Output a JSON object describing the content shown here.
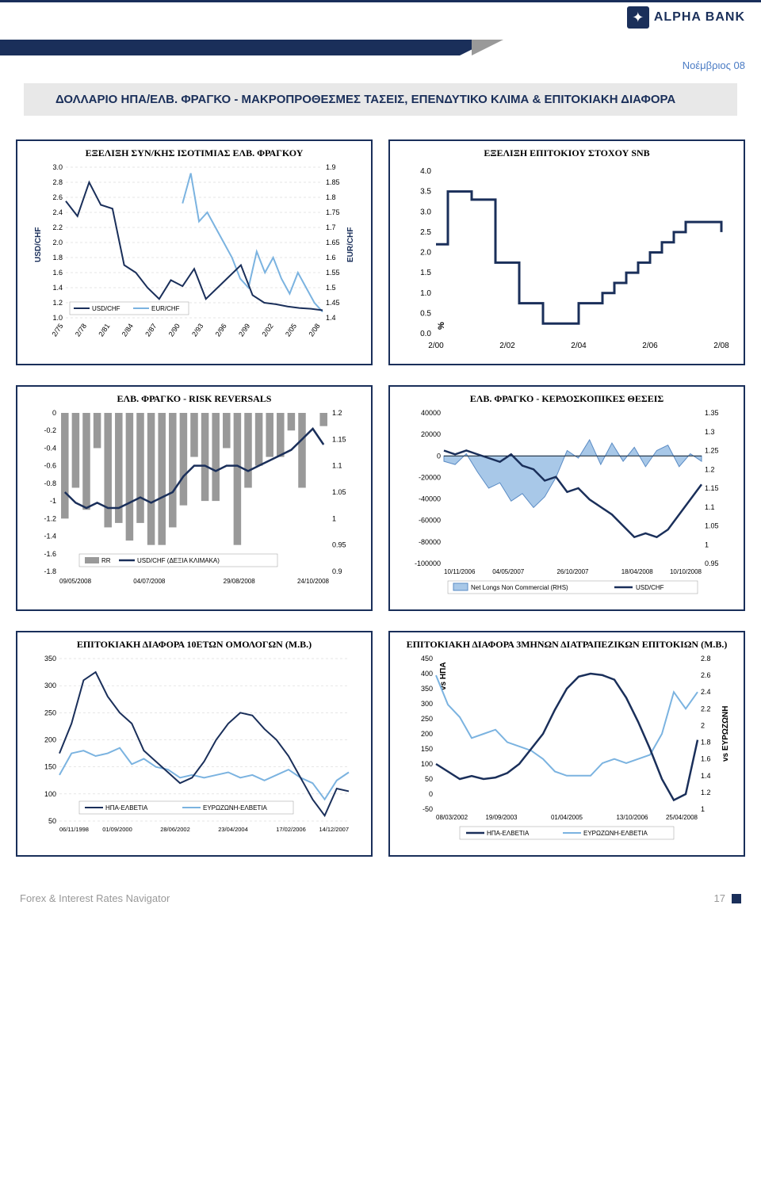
{
  "header": {
    "brand": "ALPHA BANK",
    "date": "Νοέμβριος 08"
  },
  "page_title": "ΔΟΛΛΑΡΙΟ ΗΠΑ/ΕΛΒ. ΦΡΑΓΚΟ - ΜΑΚΡΟΠΡΟΘΕΣΜΕΣ ΤΑΣΕΙΣ, ΕΠΕΝΔΥΤΙΚΟ ΚΛΙΜΑ & ΕΠΙΤΟΚΙΑΚΗ ΔΙΑΦΟΡΑ",
  "charts": {
    "c1": {
      "title": "ΕΞΕΛΙΞΗ ΣΥΝ/ΚΗΣ ΙΣΟΤΙΜΙΑΣ ΕΛΒ. ΦΡΑΓΚΟΥ",
      "type": "line-dual",
      "colors": {
        "usd": "#1a2f5a",
        "eur": "#7bb3e0",
        "grid": "#cccccc",
        "bg": "#ffffff"
      },
      "left_axis": {
        "label": "USD/CHF",
        "min": 1.0,
        "max": 3.0,
        "ticks": [
          1.0,
          1.2,
          1.4,
          1.6,
          1.8,
          2.0,
          2.2,
          2.4,
          2.6,
          2.8,
          3.0
        ]
      },
      "right_axis": {
        "label": "EUR/CHF",
        "min": 1.4,
        "max": 1.9,
        "ticks": [
          1.4,
          1.45,
          1.5,
          1.55,
          1.6,
          1.65,
          1.7,
          1.75,
          1.8,
          1.85,
          1.9
        ]
      },
      "x_labels": [
        "2/75",
        "2/78",
        "2/81",
        "2/84",
        "2/87",
        "2/90",
        "2/93",
        "2/96",
        "2/99",
        "2/02",
        "2/05",
        "2/08"
      ],
      "legend": [
        "USD/CHF",
        "EUR/CHF"
      ],
      "usd_data": [
        2.55,
        2.35,
        2.8,
        2.5,
        2.45,
        1.7,
        1.6,
        1.4,
        1.25,
        1.5,
        1.42,
        1.65,
        1.25,
        1.4,
        1.55,
        1.7,
        1.3,
        1.2,
        1.18,
        1.15,
        1.13,
        1.12,
        1.1
      ],
      "eur_data_x_start": 5,
      "eur_data": [
        1.78,
        1.88,
        1.72,
        1.75,
        1.7,
        1.65,
        1.6,
        1.53,
        1.5,
        1.62,
        1.55,
        1.6,
        1.53,
        1.48,
        1.55,
        1.5,
        1.45,
        1.42
      ]
    },
    "c2": {
      "title": "ΕΞΕΛΙΞΗ ΕΠΙΤΟΚΙΟΥ ΣΤΟΧΟΥ SNB",
      "type": "step-line",
      "colors": {
        "line": "#1a2f5a",
        "bg": "#ffffff"
      },
      "y_axis": {
        "label": "%",
        "min": 0,
        "max": 4.0,
        "ticks": [
          0.0,
          0.5,
          1.0,
          1.5,
          2.0,
          2.5,
          3.0,
          3.5,
          4.0
        ]
      },
      "x_labels": [
        "2/00",
        "2/02",
        "2/04",
        "2/06",
        "2/08"
      ],
      "data": [
        2.2,
        3.5,
        3.5,
        3.3,
        3.3,
        1.75,
        1.75,
        0.75,
        0.75,
        0.25,
        0.25,
        0.25,
        0.75,
        0.75,
        1.0,
        1.25,
        1.5,
        1.75,
        2.0,
        2.25,
        2.5,
        2.75,
        2.75,
        2.75,
        2.5
      ]
    },
    "c3": {
      "title": "ΕΛΒ. ΦΡΑΓΚΟ - RISK REVERSALS",
      "type": "bar-line",
      "colors": {
        "bar": "#999999",
        "line": "#1a2f5a",
        "bg": "#ffffff"
      },
      "left_axis": {
        "min": -1.8,
        "max": 0,
        "ticks": [
          0,
          -0.2,
          -0.4,
          -0.6,
          -0.8,
          -1,
          -1.2,
          -1.4,
          -1.6,
          -1.8
        ]
      },
      "right_axis": {
        "min": 0.9,
        "max": 1.2,
        "ticks": [
          0.9,
          0.95,
          1,
          1.05,
          1.1,
          1.15,
          1.2
        ]
      },
      "x_labels": [
        "09/05/2008",
        "04/07/2008",
        "29/08/2008",
        "24/10/2008"
      ],
      "legend": [
        "RR",
        "USD/CHF (ΔΕΞΙΑ ΚΛΙΜΑΚΑ)"
      ],
      "bar_data": [
        -1.2,
        -0.85,
        -1.1,
        -0.4,
        -1.3,
        -1.25,
        -1.45,
        -1.25,
        -1.5,
        -1.5,
        -1.3,
        -1.05,
        -0.5,
        -1.0,
        -1.0,
        -0.4,
        -1.5,
        -0.85,
        -0.6,
        -0.5,
        -0.5,
        -0.2,
        -0.85,
        0,
        -0.15
      ],
      "line_data": [
        1.05,
        1.03,
        1.02,
        1.03,
        1.02,
        1.02,
        1.03,
        1.04,
        1.03,
        1.04,
        1.05,
        1.08,
        1.1,
        1.1,
        1.09,
        1.1,
        1.1,
        1.09,
        1.1,
        1.11,
        1.12,
        1.13,
        1.15,
        1.17,
        1.14
      ]
    },
    "c4": {
      "title": "ΕΛΒ. ΦΡΑΓΚΟ - ΚΕΡΔΟΣΚΟΠΙΚΕΣ ΘΕΣΕΙΣ",
      "type": "area-line",
      "colors": {
        "area": "#a8c8e8",
        "area_stroke": "#5a8bc4",
        "line": "#1a2f5a",
        "bg": "#ffffff"
      },
      "left_axis": {
        "min": -100000,
        "max": 40000,
        "ticks": [
          -100000,
          -80000,
          -60000,
          -40000,
          -20000,
          0,
          20000,
          40000
        ]
      },
      "right_axis": {
        "min": 0.95,
        "max": 1.35,
        "ticks": [
          0.95,
          1,
          1.05,
          1.1,
          1.15,
          1.2,
          1.25,
          1.3,
          1.35
        ]
      },
      "x_labels": [
        "10/11/2006",
        "04/05/2007",
        "26/10/2007",
        "18/04/2008",
        "10/10/2008"
      ],
      "legend": [
        "Net Longs Non Commercial (RHS)",
        "USD/CHF"
      ],
      "area_data": [
        -5000,
        -8000,
        2000,
        -15000,
        -30000,
        -25000,
        -42000,
        -35000,
        -48000,
        -38000,
        -20000,
        5000,
        -2000,
        15000,
        -8000,
        12000,
        -5000,
        8000,
        -10000,
        5000,
        10000,
        -10000,
        2000,
        -5000
      ],
      "line_data": [
        1.25,
        1.24,
        1.25,
        1.24,
        1.23,
        1.22,
        1.24,
        1.21,
        1.2,
        1.17,
        1.18,
        1.14,
        1.15,
        1.12,
        1.1,
        1.08,
        1.05,
        1.02,
        1.03,
        1.02,
        1.04,
        1.08,
        1.12,
        1.16
      ]
    },
    "c5": {
      "title": "ΕΠΙΤΟΚΙΑΚΗ ΔΙΑΦΟΡΑ 10ΕΤΩΝ ΟΜΟΛΟΓΩΝ (Μ.Β.)",
      "type": "dual-line",
      "colors": {
        "line1": "#1a2f5a",
        "line2": "#7bb3e0",
        "bg": "#ffffff"
      },
      "y_axis": {
        "min": 50,
        "max": 350,
        "ticks": [
          50,
          100,
          150,
          200,
          250,
          300,
          350
        ]
      },
      "x_labels": [
        "06/11/1998",
        "01/09/2000",
        "28/06/2002",
        "23/04/2004",
        "17/02/2006",
        "14/12/2007"
      ],
      "legend": [
        "ΗΠΑ-ΕΛΒΕΤΙΑ",
        "ΕΥΡΩΖΩΝΗ-ΕΛΒΕΤΙΑ"
      ],
      "line1_data": [
        175,
        230,
        310,
        325,
        280,
        250,
        230,
        180,
        160,
        140,
        120,
        130,
        160,
        200,
        230,
        250,
        245,
        220,
        200,
        170,
        130,
        90,
        60,
        110,
        105
      ],
      "line2_data": [
        135,
        175,
        180,
        170,
        175,
        185,
        155,
        165,
        150,
        145,
        130,
        135,
        130,
        135,
        140,
        130,
        135,
        125,
        135,
        145,
        130,
        120,
        90,
        125,
        140
      ]
    },
    "c6": {
      "title": "ΕΠΙΤΟΚΙΑΚΗ ΔΙΑΦΟΡΑ 3ΜΗΝΩΝ ΔΙΑΤΡΑΠΕΖΙΚΩΝ ΕΠΙΤΟΚΙΩΝ (Μ.Β.)",
      "type": "dual-line-dual-axis",
      "colors": {
        "line1": "#1a2f5a",
        "line2": "#7bb3e0",
        "bg": "#ffffff"
      },
      "left_axis": {
        "label": "vs ΗΠΑ",
        "min": -50,
        "max": 450,
        "ticks": [
          -50,
          0,
          50,
          100,
          150,
          200,
          250,
          300,
          350,
          400,
          450
        ]
      },
      "right_axis": {
        "label": "vs ΕΥΡΩΖΩΝΗ",
        "min": 1,
        "max": 2.8,
        "ticks": [
          1,
          1.2,
          1.4,
          1.6,
          1.8,
          2,
          2.2,
          2.4,
          2.6,
          2.8
        ]
      },
      "x_labels": [
        "08/03/2002",
        "19/09/2003",
        "01/04/2005",
        "13/10/2006",
        "25/04/2008"
      ],
      "legend": [
        "ΗΠΑ-ΕΛΒΕΤΙΑ",
        "ΕΥΡΩΖΩΝΗ-ΕΛΒΕΤΙΑ"
      ],
      "line1_data": [
        100,
        75,
        50,
        60,
        50,
        55,
        70,
        100,
        150,
        200,
        280,
        350,
        390,
        400,
        395,
        380,
        320,
        240,
        150,
        50,
        -20,
        0,
        180
      ],
      "line2_data": [
        2.6,
        2.25,
        2.1,
        1.85,
        1.9,
        1.95,
        1.8,
        1.75,
        1.7,
        1.6,
        1.45,
        1.4,
        1.4,
        1.4,
        1.55,
        1.6,
        1.55,
        1.6,
        1.65,
        1.9,
        2.4,
        2.2,
        2.4
      ]
    }
  },
  "footer": {
    "left": "Forex & Interest Rates Navigator",
    "page": "17"
  }
}
